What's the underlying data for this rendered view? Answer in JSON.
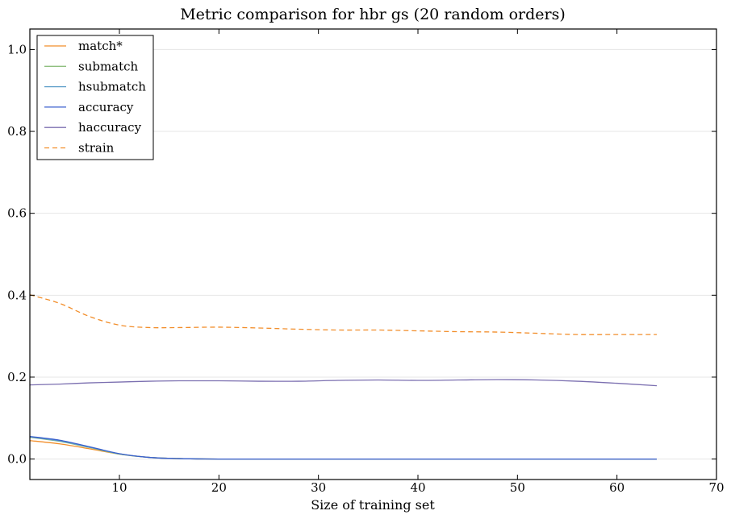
{
  "chart_data": {
    "type": "line",
    "title": "Metric comparison for hbr gs (20 random orders)",
    "xlabel": "Size of training set",
    "ylabel": "",
    "xlim": [
      1,
      70
    ],
    "ylim": [
      -0.05,
      1.05
    ],
    "xticks": [
      10,
      20,
      30,
      40,
      50,
      60,
      70
    ],
    "yticks": [
      0.0,
      0.2,
      0.4,
      0.6,
      0.8,
      1.0
    ],
    "xtick_labels": [
      "10",
      "20",
      "30",
      "40",
      "50",
      "60",
      "70"
    ],
    "ytick_labels": [
      "0.0",
      "0.2",
      "0.4",
      "0.6",
      "0.8",
      "1.0"
    ],
    "grid": "horizontal",
    "legend_position": "top-left",
    "x": [
      1,
      4,
      7,
      10,
      13,
      16,
      20,
      24,
      28,
      32,
      36,
      40,
      44,
      48,
      52,
      56,
      60,
      64
    ],
    "series": [
      {
        "name": "match*",
        "color": "#f28e2b",
        "dash": "solid",
        "values": [
          0.045,
          0.037,
          0.025,
          0.012,
          0.004,
          0.001,
          0.0,
          0.0,
          0.0,
          0.0,
          0.0,
          0.0,
          0.0,
          0.0,
          0.0,
          0.0,
          0.0,
          0.0
        ]
      },
      {
        "name": "submatch",
        "color": "#8fbf7f",
        "dash": "solid",
        "values": [
          0.053,
          0.043,
          0.028,
          0.012,
          0.004,
          0.001,
          0.0,
          0.0,
          0.0,
          0.0,
          0.0,
          0.0,
          0.0,
          0.0,
          0.0,
          0.0,
          0.0,
          0.0
        ]
      },
      {
        "name": "hsubmatch",
        "color": "#5f9fc9",
        "dash": "solid",
        "values": [
          0.054,
          0.044,
          0.029,
          0.013,
          0.004,
          0.001,
          0.0,
          0.0,
          0.0,
          0.0,
          0.0,
          0.0,
          0.0,
          0.0,
          0.0,
          0.0,
          0.0,
          0.0
        ]
      },
      {
        "name": "accuracy",
        "color": "#3a5fcd",
        "dash": "solid",
        "values": [
          0.055,
          0.046,
          0.03,
          0.013,
          0.004,
          0.001,
          0.0,
          0.0,
          0.0,
          0.0,
          0.0,
          0.0,
          0.0,
          0.0,
          0.0,
          0.0,
          0.0,
          0.0
        ]
      },
      {
        "name": "haccuracy",
        "color": "#7b6fb0",
        "dash": "solid",
        "values": [
          0.181,
          0.183,
          0.186,
          0.188,
          0.19,
          0.191,
          0.191,
          0.19,
          0.19,
          0.192,
          0.193,
          0.192,
          0.193,
          0.194,
          0.193,
          0.19,
          0.185,
          0.179
        ]
      },
      {
        "name": "strain",
        "color": "#f28e2b",
        "dash": "dashed",
        "values": [
          0.401,
          0.38,
          0.348,
          0.327,
          0.321,
          0.321,
          0.322,
          0.32,
          0.317,
          0.315,
          0.315,
          0.313,
          0.311,
          0.31,
          0.307,
          0.304,
          0.304,
          0.304
        ]
      }
    ]
  }
}
